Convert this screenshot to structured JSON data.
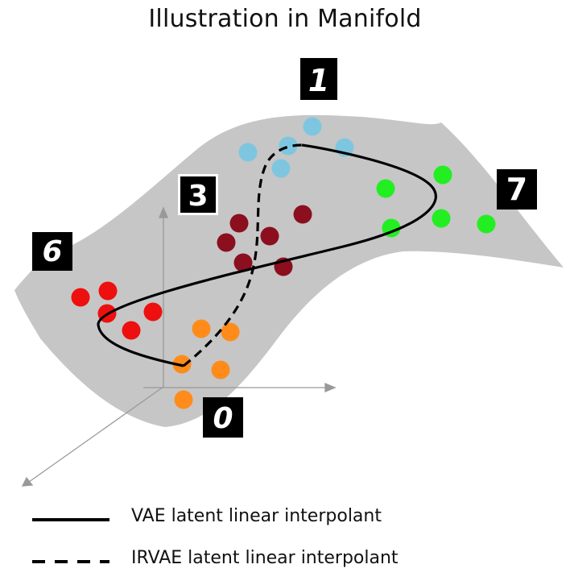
{
  "title": "Illustration in Manifold",
  "colors": {
    "manifold": "#c6c6c6",
    "axes": "#999999",
    "digit_1": "#7ec6e0",
    "digit_3": "#8b0f1e",
    "digit_7": "#22ee22",
    "digit_6": "#ee0f0f",
    "digit_0": "#ff8c1a",
    "curve": "#000000"
  },
  "digits": [
    {
      "id": "1",
      "glyph": "1",
      "color_key": "digit_1"
    },
    {
      "id": "3",
      "glyph": "3",
      "color_key": "digit_3"
    },
    {
      "id": "7",
      "glyph": "7",
      "color_key": "digit_7"
    },
    {
      "id": "6",
      "glyph": "6",
      "color_key": "digit_6"
    },
    {
      "id": "0",
      "glyph": "0",
      "color_key": "digit_0"
    }
  ],
  "legend": {
    "vae": {
      "label": "VAE latent linear interpolant",
      "style": "solid"
    },
    "irvae": {
      "label": "IRVAE latent linear interpolant",
      "style": "dashed"
    }
  }
}
